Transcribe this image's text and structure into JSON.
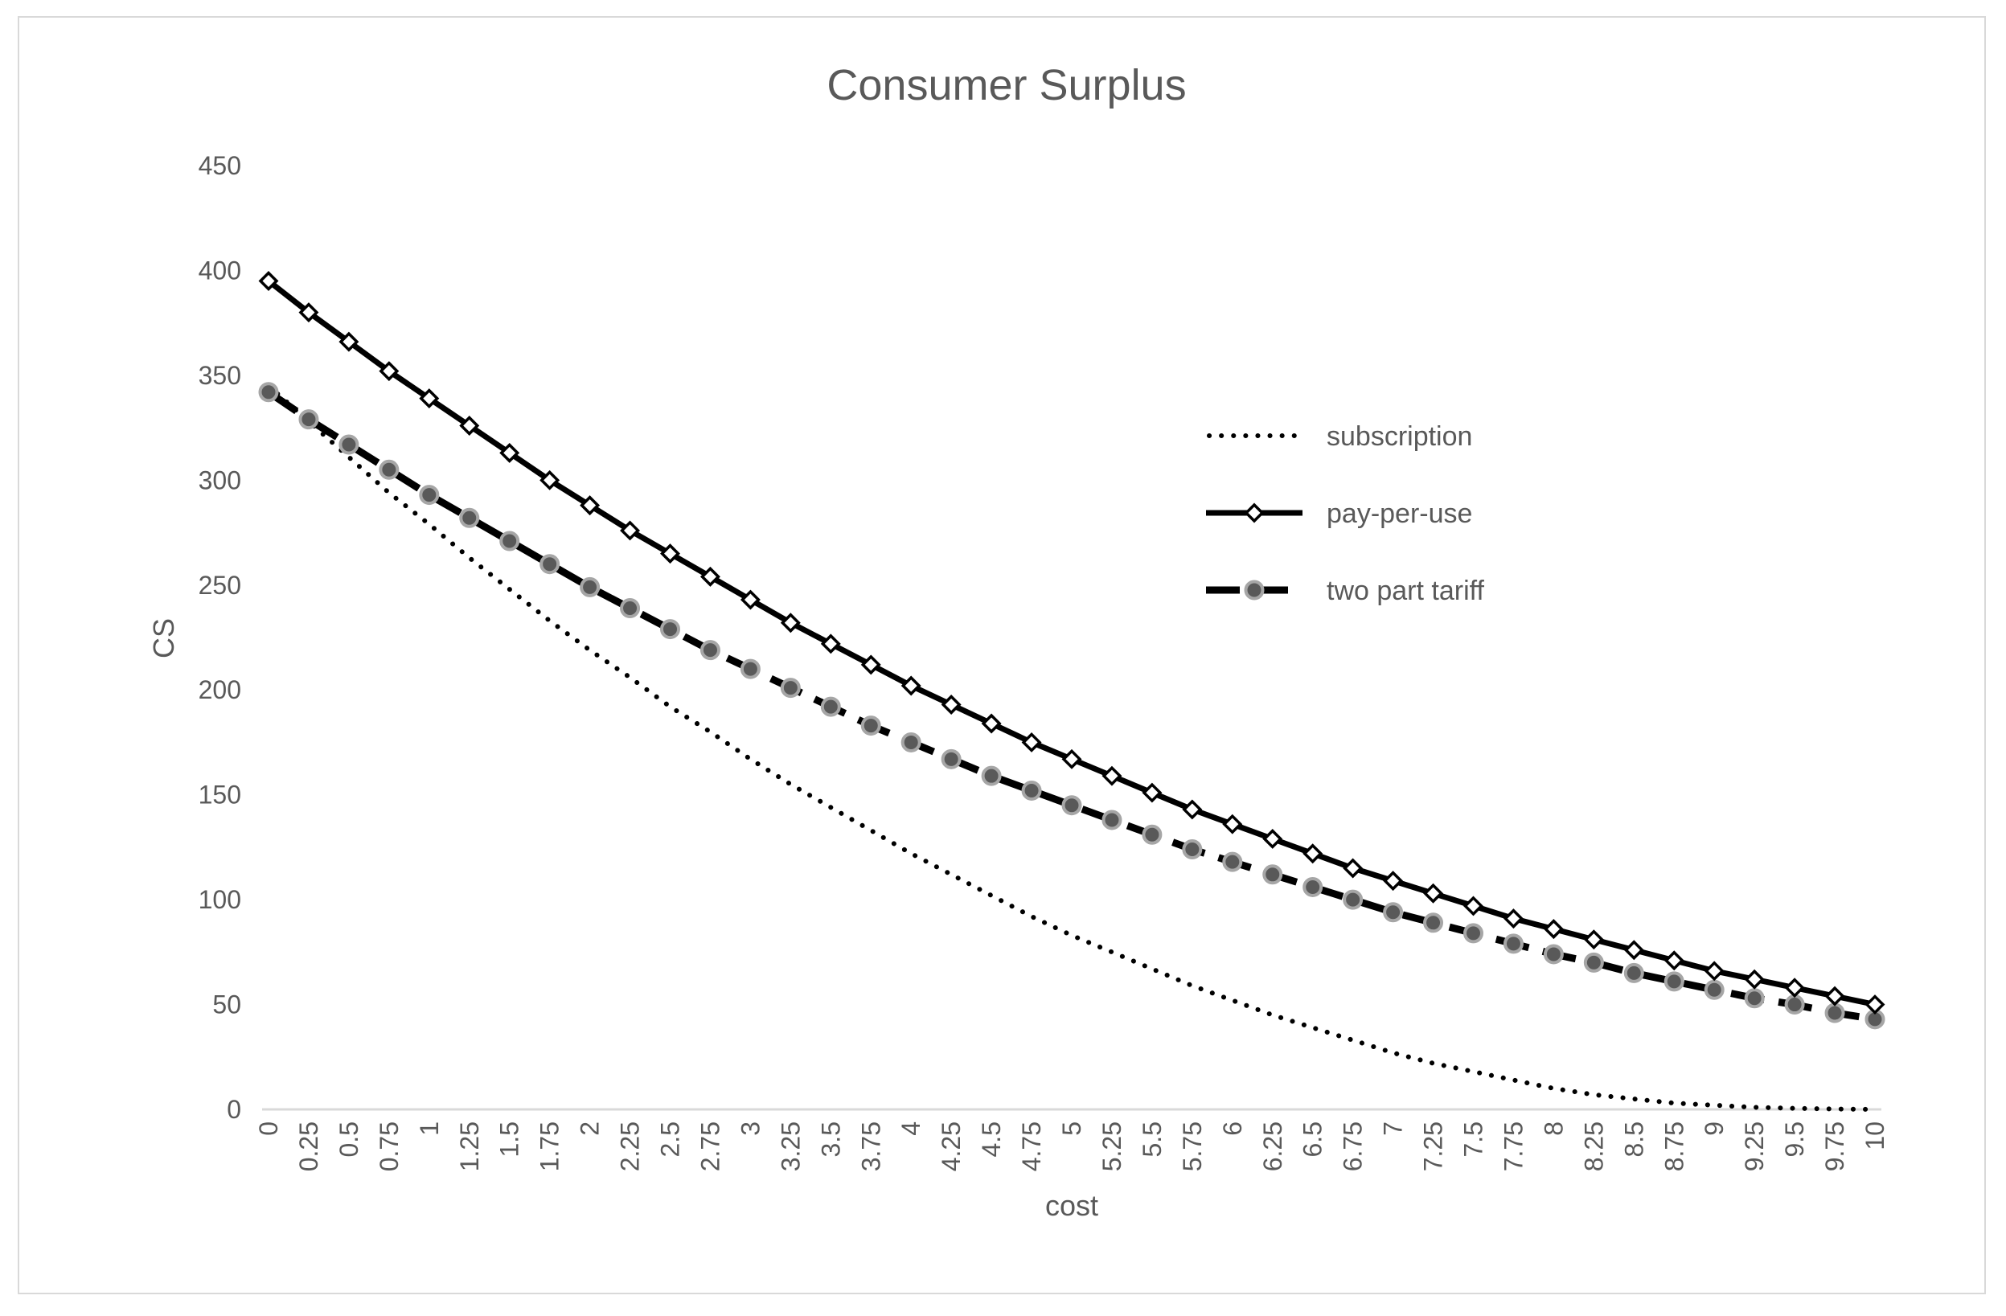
{
  "chart_data": {
    "type": "line",
    "title": "Consumer Surplus",
    "xlabel": "cost",
    "ylabel": "CS",
    "ylim": [
      0,
      450
    ],
    "yticks": [
      "0",
      "50",
      "100",
      "150",
      "200",
      "250",
      "300",
      "350",
      "400",
      "450"
    ],
    "ytick_values": [
      0,
      50,
      100,
      150,
      200,
      250,
      300,
      350,
      400,
      450
    ],
    "grid": false,
    "legend_position": "right",
    "categories": [
      "0",
      "0.25",
      "0.5",
      "0.75",
      "1",
      "1.25",
      "1.5",
      "1.75",
      "2",
      "2.25",
      "2.5",
      "2.75",
      "3",
      "3.25",
      "3.5",
      "3.75",
      "4",
      "4.25",
      "4.5",
      "4.75",
      "5",
      "5.25",
      "5.5",
      "5.75",
      "6",
      "6.25",
      "6.5",
      "6.75",
      "7",
      "7.25",
      "7.5",
      "7.75",
      "8",
      "8.25",
      "8.5",
      "8.75",
      "9",
      "9.25",
      "9.5",
      "9.75",
      "10"
    ],
    "series": [
      {
        "name": "subscription",
        "style": "dotted",
        "color": "#000000",
        "values": [
          345,
          328,
          311,
          294,
          279,
          263,
          248,
          233,
          219,
          206,
          192,
          180,
          167,
          155,
          144,
          133,
          122,
          112,
          102,
          92,
          83,
          75,
          67,
          59,
          52,
          45,
          39,
          33,
          27,
          22,
          18,
          14,
          10,
          7,
          5,
          3,
          2,
          1,
          0.5,
          0.2,
          0
        ]
      },
      {
        "name": "pay-per-use",
        "style": "solid-diamond",
        "color": "#000000",
        "values": [
          395,
          380,
          366,
          352,
          339,
          326,
          313,
          300,
          288,
          276,
          265,
          254,
          243,
          232,
          222,
          212,
          202,
          193,
          184,
          175,
          167,
          159,
          151,
          143,
          136,
          129,
          122,
          115,
          109,
          103,
          97,
          91,
          86,
          81,
          76,
          71,
          66,
          62,
          58,
          54,
          50
        ]
      },
      {
        "name": "two part tariff",
        "style": "dashed-circle",
        "color": "#000000",
        "marker_fill": "#595959",
        "marker_edge": "#a6a6a6",
        "values": [
          342,
          329,
          317,
          305,
          293,
          282,
          271,
          260,
          249,
          239,
          229,
          219,
          210,
          201,
          192,
          183,
          175,
          167,
          159,
          152,
          145,
          138,
          131,
          124,
          118,
          112,
          106,
          100,
          94,
          89,
          84,
          79,
          74,
          70,
          65,
          61,
          57,
          53,
          50,
          46,
          43
        ]
      }
    ]
  }
}
